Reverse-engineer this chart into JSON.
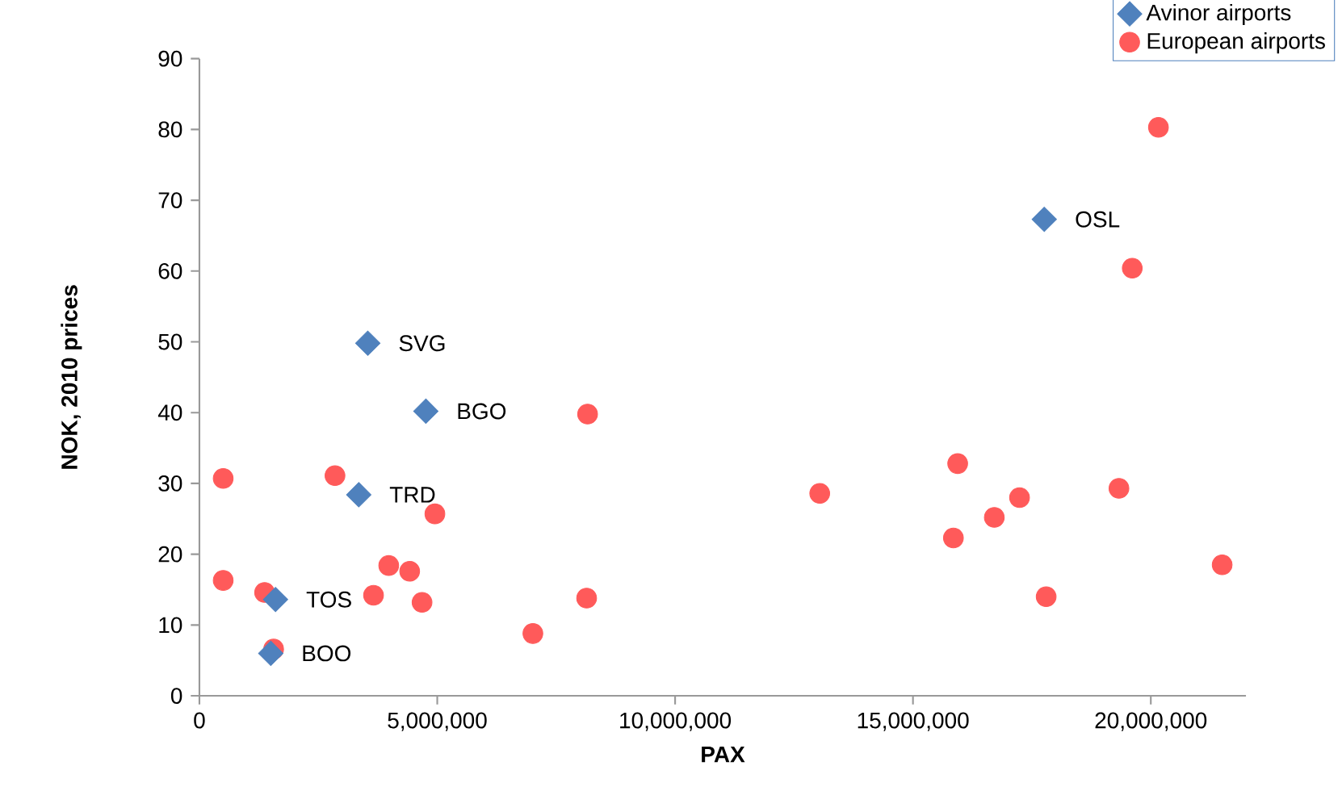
{
  "chart_data": {
    "type": "scatter",
    "xlabel": "PAX",
    "ylabel": "NOK, 2010 prices",
    "xlim": [
      0,
      22000000
    ],
    "ylim": [
      0,
      90
    ],
    "xticks": [
      0,
      {
        "value": 5000000,
        "label": "5,000,000"
      },
      {
        "value": 10000000,
        "label": "10,000,000"
      },
      {
        "value": 15000000,
        "label": "15,000,000"
      },
      {
        "value": 20000000,
        "label": "20,000,000"
      }
    ],
    "yticks": [
      0,
      10,
      20,
      30,
      40,
      50,
      60,
      70,
      80,
      90
    ],
    "grid": false,
    "legend": "top right",
    "series": [
      {
        "name": "Avinor airports",
        "color": "#4f81bd",
        "marker": "diamond",
        "x": [
          17760000,
          3540000,
          4760000,
          3350000,
          1600000,
          1500000
        ],
        "values": [
          67.3,
          49.8,
          40.2,
          28.4,
          13.6,
          6.0
        ]
      },
      {
        "name": "European airports",
        "color": "#ff5a5a",
        "marker": "circle",
        "x": [
          500000,
          500000,
          1370000,
          1560000,
          2850000,
          4950000,
          3980000,
          4420000,
          3660000,
          4680000,
          7010000,
          8160000,
          8140000,
          13040000,
          15940000,
          15850000,
          16710000,
          17240000,
          17800000,
          19330000,
          20160000,
          19610000,
          21500000
        ],
        "values": [
          30.7,
          16.3,
          14.6,
          6.6,
          31.1,
          25.7,
          18.4,
          17.6,
          14.2,
          13.2,
          8.8,
          39.8,
          13.8,
          28.6,
          32.8,
          22.3,
          25.2,
          28.0,
          14.0,
          29.3,
          80.3,
          60.4,
          18.5
        ]
      }
    ],
    "annotations": [
      {
        "text": "OSL",
        "x": 17760000,
        "y": 67.3
      },
      {
        "text": "SVG",
        "x": 3540000,
        "y": 49.8
      },
      {
        "text": "BGO",
        "x": 4760000,
        "y": 40.2
      },
      {
        "text": "TRD",
        "x": 3350000,
        "y": 28.4
      },
      {
        "text": "TOS",
        "x": 1600000,
        "y": 13.6
      },
      {
        "text": "BOO",
        "x": 1500000,
        "y": 6.0
      }
    ]
  }
}
